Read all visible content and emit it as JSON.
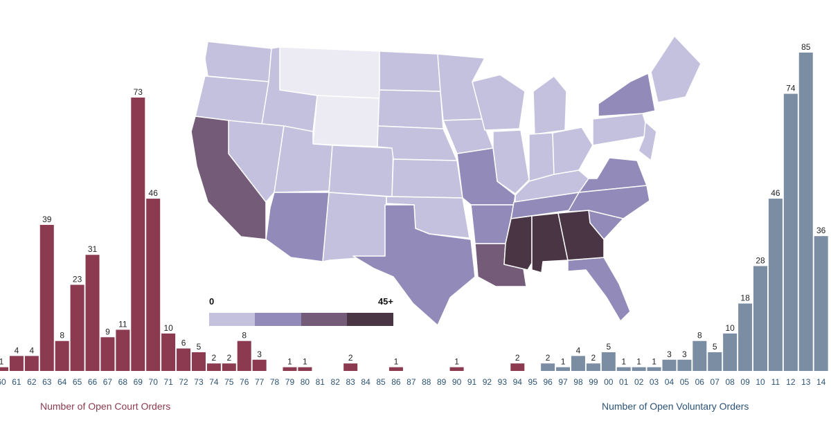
{
  "chart_data": [
    {
      "type": "bar",
      "name": "court-orders",
      "title": "Number of Open Court Orders",
      "categories": [
        "60",
        "61",
        "62",
        "63",
        "64",
        "65",
        "66",
        "67",
        "68",
        "69",
        "70",
        "71",
        "72",
        "73",
        "74",
        "75",
        "76",
        "77",
        "78",
        "79",
        "80",
        "81",
        "82",
        "83",
        "84",
        "85",
        "86",
        "87",
        "88",
        "89",
        "90",
        "91",
        "92",
        "93",
        "94",
        "95"
      ],
      "values": [
        1,
        4,
        4,
        39,
        8,
        23,
        31,
        9,
        11,
        73,
        46,
        10,
        6,
        5,
        2,
        2,
        8,
        3,
        0,
        1,
        1,
        0,
        0,
        2,
        0,
        0,
        1,
        0,
        0,
        0,
        1,
        0,
        0,
        0,
        2,
        0
      ],
      "ylim": [
        0,
        85
      ],
      "color": "#8b3a50"
    },
    {
      "type": "bar",
      "name": "voluntary-orders",
      "title": "Number of Open Voluntary Orders",
      "categories": [
        "96",
        "97",
        "98",
        "99",
        "00",
        "01",
        "02",
        "03",
        "04",
        "05",
        "06",
        "07",
        "08",
        "09",
        "10",
        "11",
        "12",
        "13",
        "14"
      ],
      "values": [
        2,
        1,
        4,
        2,
        5,
        1,
        1,
        1,
        3,
        3,
        8,
        5,
        10,
        18,
        28,
        46,
        74,
        85,
        36
      ],
      "ylim": [
        0,
        85
      ],
      "color": "#7a8da3"
    }
  ],
  "map": {
    "legend": {
      "min_label": "0",
      "max_label": "45+",
      "colors": [
        "#c3c1de",
        "#928ab9",
        "#745c78",
        "#4a3545"
      ]
    },
    "state_colors": {
      "empty": "#ecebf3",
      "light": "#c3c1de",
      "medium": "#928ab9",
      "dark": "#745c78",
      "darkest": "#4a3545",
      "white": "#ffffff"
    }
  }
}
